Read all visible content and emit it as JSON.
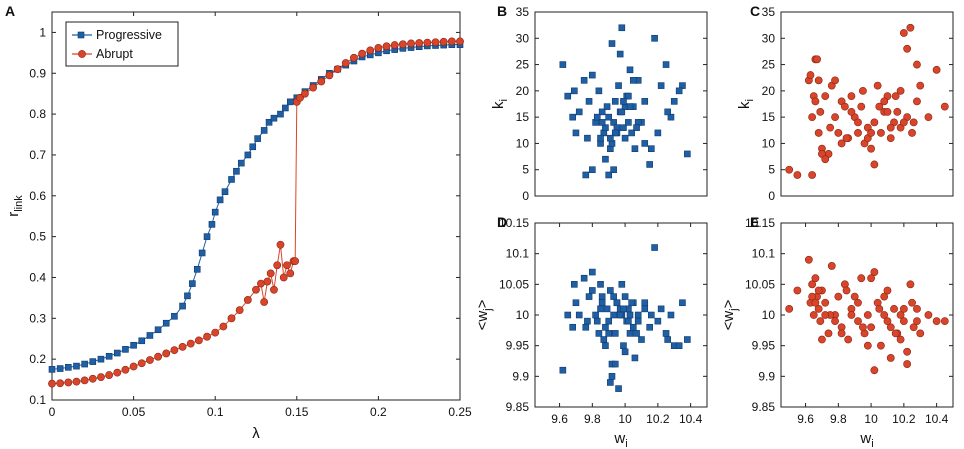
{
  "colors": {
    "progressive": "#1f5fa6",
    "abrupt": "#d9452b",
    "axis": "#222222"
  },
  "chart_data": [
    {
      "id": "A",
      "type": "line",
      "panel_label": "A",
      "xlabel": "λ",
      "ylabel_main": "r",
      "ylabel_sub": "link",
      "xlim": [
        0,
        0.25
      ],
      "ylim": [
        0.1,
        1.05
      ],
      "xticks": [
        0,
        0.05,
        0.1,
        0.15,
        0.2,
        0.25
      ],
      "xtick_labels": [
        "0",
        "0.05",
        "0.1",
        "0.15",
        "0.2",
        "0.25"
      ],
      "yticks": [
        0.1,
        0.2,
        0.3,
        0.4,
        0.5,
        0.6,
        0.7,
        0.8,
        0.9,
        1
      ],
      "ytick_labels": [
        "0.1",
        "0.2",
        "0.3",
        "0.4",
        "0.5",
        "0.6",
        "0.7",
        "0.8",
        "0.9",
        "1"
      ],
      "legend_position": "top-left",
      "series": [
        {
          "name": "Progressive",
          "marker": "square",
          "color_key": "progressive",
          "x": [
            0,
            0.005,
            0.01,
            0.015,
            0.02,
            0.025,
            0.03,
            0.035,
            0.04,
            0.045,
            0.05,
            0.055,
            0.06,
            0.065,
            0.07,
            0.075,
            0.08,
            0.083,
            0.086,
            0.089,
            0.092,
            0.095,
            0.098,
            0.1,
            0.103,
            0.106,
            0.11,
            0.113,
            0.116,
            0.12,
            0.123,
            0.126,
            0.13,
            0.133,
            0.136,
            0.14,
            0.143,
            0.146,
            0.15,
            0.155,
            0.16,
            0.165,
            0.17,
            0.175,
            0.18,
            0.185,
            0.19,
            0.195,
            0.2,
            0.205,
            0.21,
            0.215,
            0.22,
            0.225,
            0.23,
            0.235,
            0.24,
            0.245,
            0.25
          ],
          "y": [
            0.175,
            0.177,
            0.18,
            0.183,
            0.188,
            0.194,
            0.2,
            0.207,
            0.215,
            0.224,
            0.234,
            0.245,
            0.258,
            0.272,
            0.288,
            0.305,
            0.33,
            0.355,
            0.385,
            0.42,
            0.46,
            0.5,
            0.53,
            0.56,
            0.59,
            0.61,
            0.64,
            0.66,
            0.68,
            0.7,
            0.72,
            0.74,
            0.76,
            0.78,
            0.79,
            0.8,
            0.815,
            0.83,
            0.84,
            0.855,
            0.87,
            0.885,
            0.9,
            0.91,
            0.92,
            0.93,
            0.94,
            0.945,
            0.95,
            0.955,
            0.958,
            0.961,
            0.963,
            0.965,
            0.967,
            0.968,
            0.969,
            0.97,
            0.97
          ]
        },
        {
          "name": "Abrupt",
          "marker": "circle",
          "color_key": "abrupt",
          "x": [
            0,
            0.005,
            0.01,
            0.015,
            0.02,
            0.025,
            0.03,
            0.035,
            0.04,
            0.045,
            0.05,
            0.055,
            0.06,
            0.065,
            0.07,
            0.075,
            0.08,
            0.085,
            0.09,
            0.095,
            0.1,
            0.105,
            0.11,
            0.115,
            0.12,
            0.125,
            0.128,
            0.13,
            0.132,
            0.134,
            0.136,
            0.138,
            0.14,
            0.142,
            0.144,
            0.146,
            0.148,
            0.149,
            0.15,
            0.152,
            0.155,
            0.16,
            0.165,
            0.17,
            0.175,
            0.18,
            0.185,
            0.19,
            0.195,
            0.2,
            0.205,
            0.21,
            0.215,
            0.22,
            0.225,
            0.23,
            0.235,
            0.24,
            0.245,
            0.25
          ],
          "y": [
            0.14,
            0.141,
            0.143,
            0.145,
            0.148,
            0.152,
            0.156,
            0.161,
            0.167,
            0.174,
            0.182,
            0.19,
            0.198,
            0.206,
            0.214,
            0.222,
            0.23,
            0.238,
            0.246,
            0.255,
            0.265,
            0.28,
            0.3,
            0.32,
            0.345,
            0.37,
            0.385,
            0.34,
            0.39,
            0.41,
            0.37,
            0.43,
            0.48,
            0.4,
            0.43,
            0.41,
            0.44,
            0.44,
            0.83,
            0.84,
            0.85,
            0.865,
            0.88,
            0.895,
            0.91,
            0.925,
            0.938,
            0.948,
            0.956,
            0.962,
            0.966,
            0.969,
            0.971,
            0.973,
            0.974,
            0.975,
            0.976,
            0.977,
            0.978,
            0.978
          ]
        }
      ]
    },
    {
      "id": "B",
      "type": "scatter",
      "panel_label": "B",
      "marker": "square",
      "color_key": "progressive",
      "xlabel": "",
      "ylabel_main": "k",
      "ylabel_sub": "i",
      "xlim": [
        9.45,
        10.5
      ],
      "ylim": [
        0,
        35
      ],
      "yticks": [
        0,
        5,
        10,
        15,
        20,
        25,
        30,
        35
      ],
      "ytick_labels": [
        "0",
        "5",
        "10",
        "15",
        "20",
        "25",
        "30",
        "35"
      ],
      "x": [
        9.62,
        9.65,
        9.68,
        9.7,
        9.72,
        9.75,
        9.77,
        9.78,
        9.8,
        9.82,
        9.84,
        9.85,
        9.86,
        9.87,
        9.88,
        9.89,
        9.9,
        9.91,
        9.92,
        9.93,
        9.94,
        9.95,
        9.96,
        9.97,
        9.98,
        9.99,
        10.0,
        10.01,
        10.02,
        10.03,
        10.05,
        10.06,
        10.08,
        10.1,
        10.12,
        10.15,
        10.18,
        10.2,
        10.22,
        10.25,
        10.28,
        10.3,
        10.35,
        10.38,
        9.88,
        9.92,
        9.95,
        9.98,
        10.02,
        10.05,
        9.85,
        9.9,
        9.93,
        9.97,
        10.0,
        10.04,
        10.08,
        9.8,
        9.76,
        10.12,
        10.26,
        9.69,
        9.83,
        10.16,
        9.94,
        9.99,
        10.07,
        10.33,
        9.86,
        9.91,
        10.03
      ],
      "y": [
        25,
        19,
        15,
        12,
        16,
        22,
        11,
        18,
        5,
        14,
        20,
        10,
        16,
        12,
        13,
        17,
        4,
        9,
        29,
        14,
        18,
        12,
        21,
        16,
        32,
        13,
        11,
        19,
        14,
        24,
        17,
        9,
        22,
        14,
        18,
        6,
        30,
        12,
        21,
        25,
        15,
        18,
        21,
        8,
        7,
        10,
        13,
        16,
        19,
        22,
        11,
        15,
        5,
        27,
        17,
        12,
        14,
        23,
        4,
        10,
        16,
        20,
        15,
        9,
        12,
        18,
        13,
        20,
        14,
        11,
        17
      ]
    },
    {
      "id": "C",
      "type": "scatter",
      "panel_label": "C",
      "marker": "circle",
      "color_key": "abrupt",
      "xlabel": "",
      "ylabel_main": "k",
      "ylabel_sub": "i",
      "xlim": [
        9.45,
        10.5
      ],
      "ylim": [
        0,
        35
      ],
      "yticks": [
        0,
        5,
        10,
        15,
        20,
        25,
        30,
        35
      ],
      "ytick_labels": [
        "0",
        "5",
        "10",
        "15",
        "20",
        "25",
        "30",
        "35"
      ],
      "x": [
        9.5,
        9.55,
        9.62,
        9.63,
        9.64,
        9.65,
        9.66,
        9.67,
        9.68,
        9.69,
        9.7,
        9.72,
        9.74,
        9.76,
        9.78,
        9.8,
        9.82,
        9.84,
        9.86,
        9.88,
        9.9,
        9.92,
        9.94,
        9.96,
        9.98,
        10.0,
        10.02,
        10.04,
        10.06,
        10.08,
        10.1,
        10.12,
        10.14,
        10.16,
        10.18,
        10.2,
        10.22,
        10.24,
        10.26,
        10.28,
        10.3,
        10.35,
        10.4,
        10.45,
        9.64,
        9.7,
        9.75,
        9.85,
        9.95,
        10.05,
        10.15,
        10.25,
        9.66,
        9.78,
        9.88,
        9.98,
        10.08,
        10.18,
        10.28,
        9.72,
        9.92,
        10.02,
        10.12,
        10.22,
        9.68,
        9.82,
        10.0,
        10.1,
        10.2
      ],
      "y": [
        5,
        4,
        22,
        23,
        4,
        19,
        26,
        26,
        22,
        16,
        9,
        19,
        8,
        21,
        15,
        12,
        18,
        17,
        11,
        19,
        15,
        12,
        17,
        10,
        13,
        9,
        14,
        21,
        12,
        16,
        19,
        11,
        14,
        16,
        13,
        31,
        28,
        32,
        14,
        18,
        21,
        15,
        24,
        17,
        15,
        8,
        13,
        11,
        20,
        17,
        19,
        12,
        18,
        22,
        16,
        11,
        18,
        20,
        25,
        7,
        14,
        6,
        13,
        15,
        12,
        10,
        12,
        16,
        14
      ]
    },
    {
      "id": "D",
      "type": "scatter",
      "panel_label": "D",
      "marker": "square",
      "color_key": "progressive",
      "xlabel_main": "w",
      "xlabel_sub": "i",
      "ylabel_main": "<w",
      "ylabel_sub": "j",
      "ylabel_end": ">",
      "xlim": [
        9.45,
        10.5
      ],
      "ylim": [
        9.85,
        10.15
      ],
      "xticks": [
        9.6,
        9.8,
        10,
        10.2,
        10.4
      ],
      "xtick_labels": [
        "9.6",
        "9.8",
        "10",
        "10.2",
        "10.4"
      ],
      "yticks": [
        9.85,
        9.9,
        9.95,
        10,
        10.05,
        10.1,
        10.15
      ],
      "ytick_labels": [
        "9.85",
        "9.9",
        "9.95",
        "10",
        "10.05",
        "10.1",
        "10.15"
      ],
      "x": [
        9.62,
        9.65,
        9.68,
        9.7,
        9.72,
        9.75,
        9.77,
        9.78,
        9.8,
        9.82,
        9.84,
        9.85,
        9.86,
        9.87,
        9.88,
        9.89,
        9.9,
        9.91,
        9.92,
        9.93,
        9.94,
        9.95,
        9.96,
        9.97,
        9.98,
        9.99,
        10.0,
        10.01,
        10.02,
        10.03,
        10.05,
        10.06,
        10.08,
        10.1,
        10.12,
        10.15,
        10.18,
        10.2,
        10.22,
        10.25,
        10.28,
        10.3,
        10.35,
        10.38,
        9.88,
        9.92,
        9.95,
        9.98,
        10.02,
        10.05,
        9.85,
        9.9,
        9.93,
        9.97,
        10.0,
        10.04,
        10.08,
        9.8,
        9.76,
        10.12,
        10.26,
        9.69,
        9.83,
        10.16,
        9.94,
        9.99,
        10.07,
        10.33,
        9.86,
        9.91,
        10.03
      ],
      "y": [
        9.91,
        10.0,
        9.98,
        10.02,
        10.0,
        10.06,
        9.99,
        10.03,
        10.07,
        10.0,
        9.97,
        10.05,
        10.02,
        9.96,
        9.98,
        10.01,
        9.99,
        10.04,
        9.92,
        10.0,
        9.97,
        10.02,
        9.88,
        10.01,
        10.0,
        9.95,
        10.03,
        9.99,
        10.01,
        9.97,
        10.02,
        9.93,
        10.0,
        9.96,
        10.02,
        9.98,
        10.11,
        9.99,
        10.01,
        9.97,
        10.0,
        9.95,
        10.02,
        9.96,
        9.95,
        9.9,
        10.02,
        10.05,
        9.99,
        9.98,
        10.01,
        9.97,
        10.03,
        10.0,
        9.94,
        10.02,
        9.99,
        10.04,
        9.98,
        10.01,
        9.96,
        10.05,
        9.99,
        10.0,
        9.92,
        10.01,
        9.97,
        9.95,
        10.03,
        9.89,
        10.0
      ]
    },
    {
      "id": "E",
      "type": "scatter",
      "panel_label": "E",
      "marker": "circle",
      "color_key": "abrupt",
      "xlabel_main": "w",
      "xlabel_sub": "i",
      "ylabel_main": "<w",
      "ylabel_sub": "j",
      "ylabel_end": ">",
      "xlim": [
        9.45,
        10.5
      ],
      "ylim": [
        9.85,
        10.15
      ],
      "xticks": [
        9.6,
        9.8,
        10,
        10.2,
        10.4
      ],
      "xtick_labels": [
        "9.6",
        "9.8",
        "10",
        "10.2",
        "10.4"
      ],
      "yticks": [
        9.85,
        9.9,
        9.95,
        10,
        10.05,
        10.1,
        10.15
      ],
      "ytick_labels": [
        "9.85",
        "9.9",
        "9.95",
        "10",
        "10.05",
        "10.1",
        "10.15"
      ],
      "x": [
        9.5,
        9.55,
        9.62,
        9.63,
        9.64,
        9.65,
        9.66,
        9.67,
        9.68,
        9.69,
        9.7,
        9.72,
        9.74,
        9.76,
        9.78,
        9.8,
        9.82,
        9.84,
        9.86,
        9.88,
        9.9,
        9.92,
        9.94,
        9.96,
        9.98,
        10.0,
        10.02,
        10.04,
        10.06,
        10.08,
        10.1,
        10.12,
        10.14,
        10.16,
        10.18,
        10.2,
        10.22,
        10.24,
        10.26,
        10.28,
        10.3,
        10.35,
        10.4,
        10.45,
        9.64,
        9.7,
        9.75,
        9.85,
        9.95,
        10.05,
        10.15,
        10.25,
        9.66,
        9.78,
        9.88,
        9.98,
        10.08,
        10.18,
        10.28,
        9.72,
        9.92,
        10.02,
        10.12,
        10.22,
        9.68,
        9.82,
        10.0,
        10.1,
        10.2
      ],
      "y": [
        10.01,
        10.04,
        10.09,
        10.02,
        10.05,
        10.0,
        10.06,
        10.03,
        10.01,
        9.99,
        10.04,
        10.02,
        9.97,
        10.08,
        10.0,
        10.03,
        9.98,
        10.05,
        9.96,
        10.01,
        10.03,
        9.99,
        10.06,
        9.97,
        10.0,
        9.98,
        10.07,
        10.02,
        9.95,
        10.0,
        10.04,
        9.93,
        10.01,
        9.97,
        10.0,
        9.99,
        9.92,
        10.05,
        9.98,
        10.01,
        9.97,
        10.0,
        9.99,
        9.99,
        10.03,
        9.96,
        10.0,
        10.04,
        9.98,
        10.01,
        9.97,
        10.02,
        10.02,
        9.99,
        10.0,
        9.95,
        10.03,
        9.96,
        9.99,
        10.0,
        10.02,
        9.91,
        9.98,
        9.94,
        10.04,
        9.97,
        10.06,
        9.99,
        10.01
      ]
    }
  ]
}
